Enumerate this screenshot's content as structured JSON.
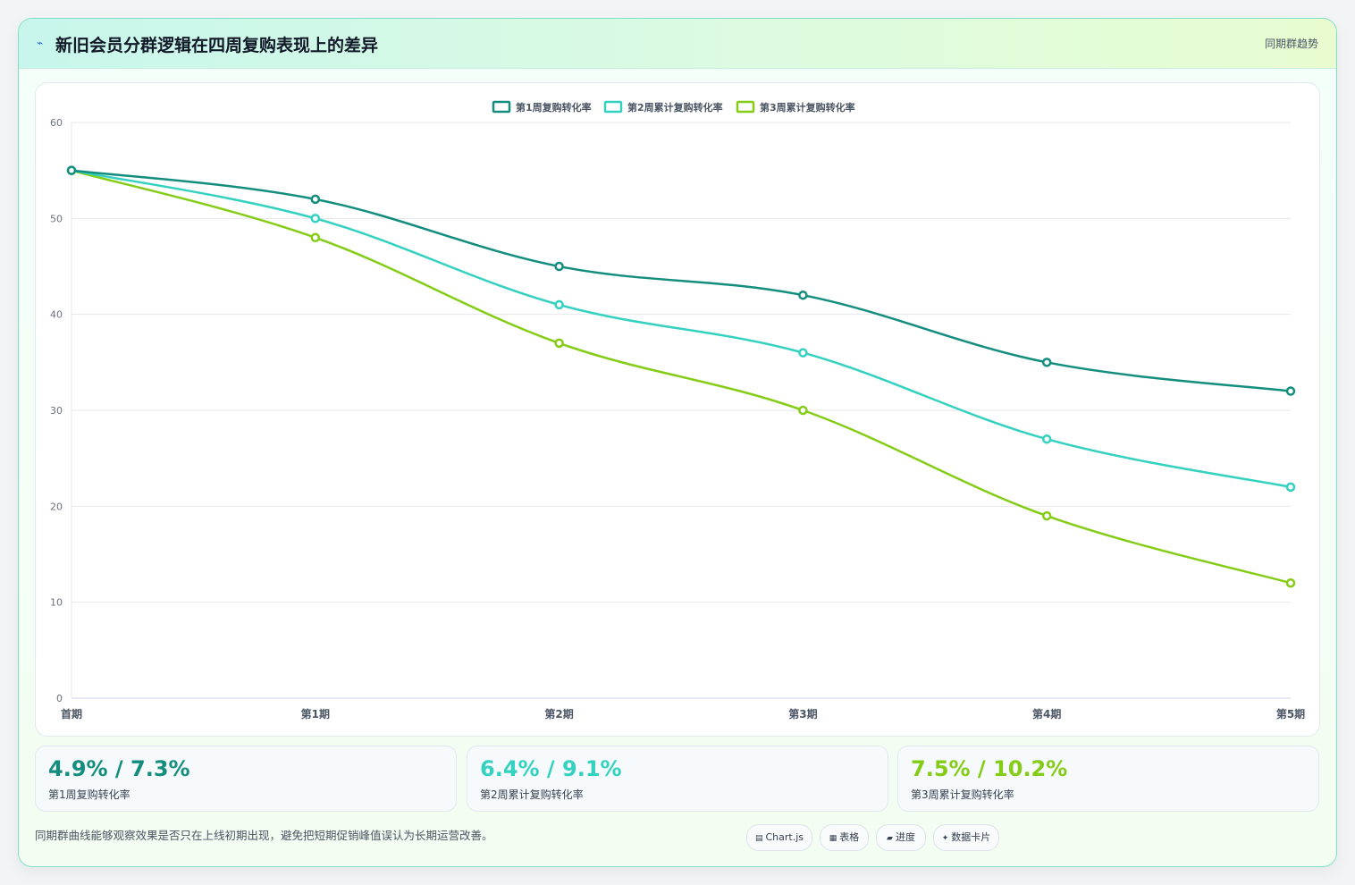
{
  "header": {
    "icon": "lightning-icon",
    "title": "新旧会员分群逻辑在四周复购表现上的差异",
    "tag": "同期群趋势"
  },
  "colors": {
    "series1": "#138d7d",
    "series2": "#34d1c1",
    "series3": "#84cc16"
  },
  "chart_data": {
    "type": "line",
    "categories": [
      "首期",
      "第1期",
      "第2期",
      "第3期",
      "第4期",
      "第5期"
    ],
    "series": [
      {
        "name": "第1周复购转化率",
        "values": [
          55,
          52,
          45,
          42,
          35,
          32
        ]
      },
      {
        "name": "第2周累计复购转化率",
        "values": [
          55,
          50,
          41,
          36,
          27,
          22
        ]
      },
      {
        "name": "第3周累计复购转化率",
        "values": [
          55,
          48,
          37,
          30,
          19,
          12
        ]
      }
    ],
    "ylim": [
      0,
      60
    ],
    "yticks": [
      0,
      10,
      20,
      30,
      40,
      50,
      60
    ],
    "grid": true,
    "legend_position": "top-center"
  },
  "stats": [
    {
      "value": "4.9% / 7.3%",
      "label": "第1周复购转化率"
    },
    {
      "value": "6.4% / 9.1%",
      "label": "第2周累计复购转化率"
    },
    {
      "value": "7.5% / 10.2%",
      "label": "第3周累计复购转化率"
    }
  ],
  "footer": {
    "note": "同期群曲线能够观察效果是否只在上线初期出现，避免把短期促销峰值误认为长期运营改善。"
  },
  "chips": [
    {
      "icon": "▤",
      "label": "Chart.js"
    },
    {
      "icon": "▦",
      "label": "表格"
    },
    {
      "icon": "▰",
      "label": "进度"
    },
    {
      "icon": "✦",
      "label": "数据卡片"
    }
  ]
}
